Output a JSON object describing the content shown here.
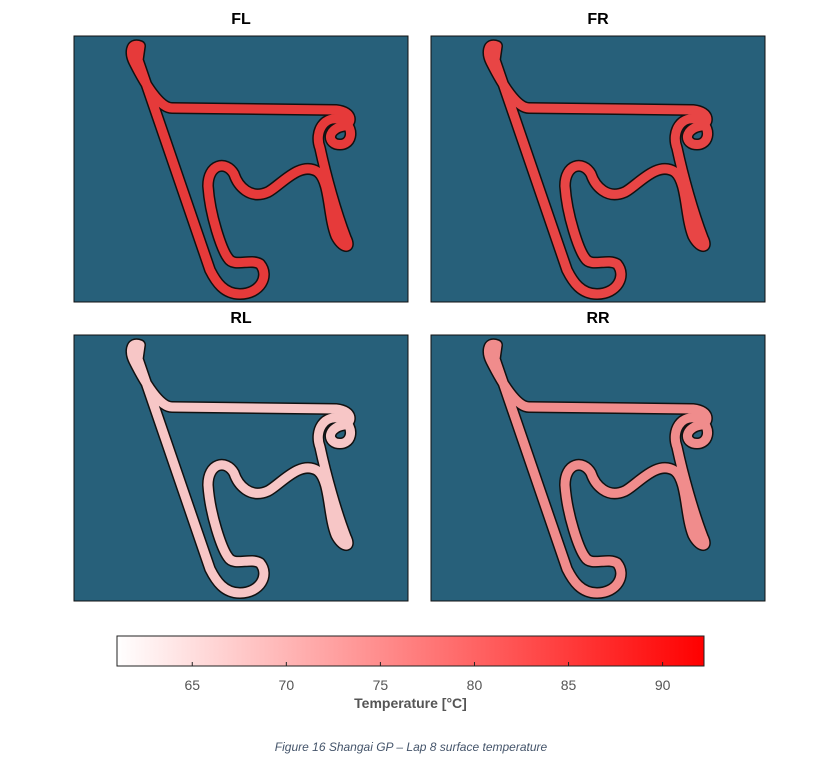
{
  "chart_data": {
    "type": "track-heatmap",
    "panels": [
      {
        "title": "FL",
        "color": "#e63a3a"
      },
      {
        "title": "FR",
        "color": "#e84545"
      },
      {
        "title": "RL",
        "color": "#f7c6c6"
      },
      {
        "title": "RR",
        "color": "#f08c8c"
      }
    ],
    "colorbar": {
      "colormap": [
        "#ffffff",
        "#ff0000"
      ],
      "clim": [
        61,
        92.2
      ],
      "ticks": [
        65,
        70,
        75,
        80,
        85,
        90
      ],
      "label": "Temperature [°C]"
    },
    "caption": "Figure 16 Shangai GP – Lap 8 surface temperature"
  }
}
